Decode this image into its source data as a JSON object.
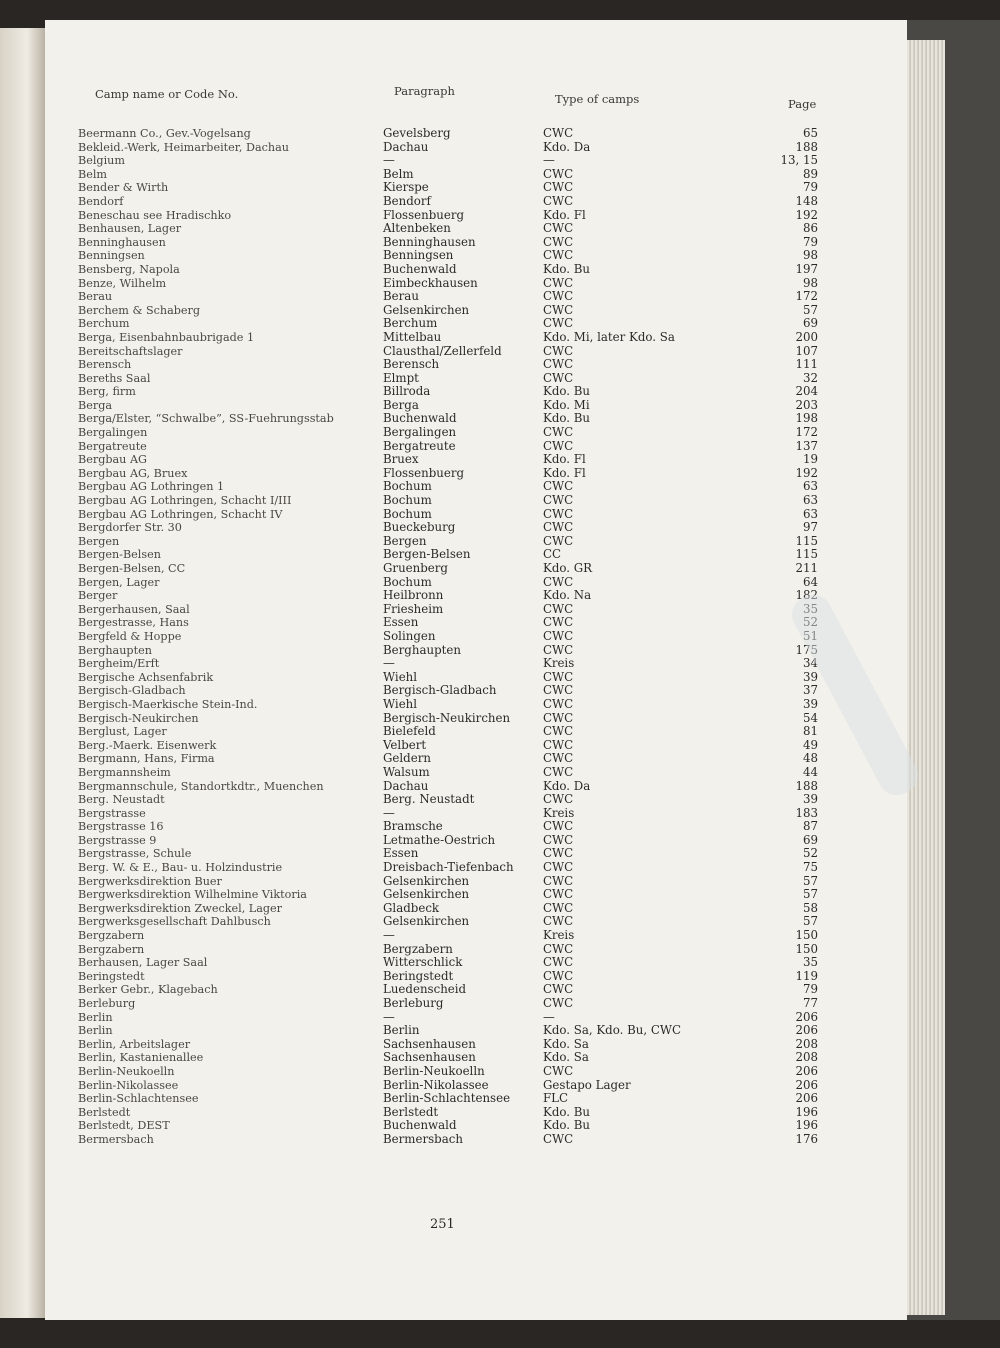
{
  "headers": {
    "name": "Camp name or Code No.",
    "paragraph": "Paragraph",
    "type": "Type of camps",
    "page": "Page"
  },
  "folio": "251",
  "rows": [
    [
      "Beermann Co., Gev.-Vogelsang",
      "Gevelsberg",
      "CWC",
      "65"
    ],
    [
      "Bekleid.-Werk, Heimarbeiter, Dachau",
      "Dachau",
      "Kdo. Da",
      "188"
    ],
    [
      "Belgium",
      "—",
      "—",
      "13, 15"
    ],
    [
      "Belm",
      "Belm",
      "CWC",
      "89"
    ],
    [
      "Bender & Wirth",
      "Kierspe",
      "CWC",
      "79"
    ],
    [
      "Bendorf",
      "Bendorf",
      "CWC",
      "148"
    ],
    [
      "Beneschau see Hradischko",
      "Flossenbuerg",
      "Kdo. Fl",
      "192"
    ],
    [
      "Benhausen, Lager",
      "Altenbeken",
      "CWC",
      "86"
    ],
    [
      "Benninghausen",
      "Benninghausen",
      "CWC",
      "79"
    ],
    [
      "Benningsen",
      "Benningsen",
      "CWC",
      "98"
    ],
    [
      "Bensberg, Napola",
      "Buchenwald",
      "Kdo. Bu",
      "197"
    ],
    [
      "Benze, Wilhelm",
      "Eimbeckhausen",
      "CWC",
      "98"
    ],
    [
      "Berau",
      "Berau",
      "CWC",
      "172"
    ],
    [
      "Berchem & Schaberg",
      "Gelsenkirchen",
      "CWC",
      "57"
    ],
    [
      "Berchum",
      "Berchum",
      "CWC",
      "69"
    ],
    [
      "Berga, Eisenbahnbaubrigade 1",
      "Mittelbau",
      "Kdo. Mi, later Kdo. Sa",
      "200"
    ],
    [
      "Bereitschaftslager",
      "Clausthal/Zellerfeld",
      "CWC",
      "107"
    ],
    [
      "Berensch",
      "Berensch",
      "CWC",
      "111"
    ],
    [
      "Bereths Saal",
      "Elmpt",
      "CWC",
      "32"
    ],
    [
      "Berg, firm",
      "Billroda",
      "Kdo. Bu",
      "204"
    ],
    [
      "Berga",
      "Berga",
      "Kdo. Mi",
      "203"
    ],
    [
      "Berga/Elster, “Schwalbe”, SS-Fuehrungsstab",
      "Buchenwald",
      "Kdo. Bu",
      "198"
    ],
    [
      "Bergalingen",
      "Bergalingen",
      "CWC",
      "172"
    ],
    [
      "Bergatreute",
      "Bergatreute",
      "CWC",
      "137"
    ],
    [
      "Bergbau AG",
      "Bruex",
      "Kdo. Fl",
      "19"
    ],
    [
      "Bergbau AG, Bruex",
      "Flossenbuerg",
      "Kdo. Fl",
      "192"
    ],
    [
      "Bergbau AG Lothringen 1",
      "Bochum",
      "CWC",
      "63"
    ],
    [
      "Bergbau AG Lothringen, Schacht I/III",
      "Bochum",
      "CWC",
      "63"
    ],
    [
      "Bergbau AG Lothringen, Schacht IV",
      "Bochum",
      "CWC",
      "63"
    ],
    [
      "Bergdorfer Str. 30",
      "Bueckeburg",
      "CWC",
      "97"
    ],
    [
      "Bergen",
      "Bergen",
      "CWC",
      "115"
    ],
    [
      "Bergen-Belsen",
      "Bergen-Belsen",
      "CC",
      "115"
    ],
    [
      "Bergen-Belsen, CC",
      "Gruenberg",
      "Kdo. GR",
      "211"
    ],
    [
      "Bergen, Lager",
      "Bochum",
      "CWC",
      "64"
    ],
    [
      "Berger",
      "Heilbronn",
      "Kdo. Na",
      "182"
    ],
    [
      "Bergerhausen, Saal",
      "Friesheim",
      "CWC",
      "35"
    ],
    [
      "Bergestrasse, Hans",
      "Essen",
      "CWC",
      "52"
    ],
    [
      "Bergfeld & Hoppe",
      "Solingen",
      "CWC",
      "51"
    ],
    [
      "Berghaupten",
      "Berghaupten",
      "CWC",
      "175"
    ],
    [
      "Bergheim/Erft",
      "—",
      "Kreis",
      "34"
    ],
    [
      "Bergische Achsenfabrik",
      "Wiehl",
      "CWC",
      "39"
    ],
    [
      "Bergisch-Gladbach",
      "Bergisch-Gladbach",
      "CWC",
      "37"
    ],
    [
      "Bergisch-Maerkische Stein-Ind.",
      "Wiehl",
      "CWC",
      "39"
    ],
    [
      "Bergisch-Neukirchen",
      "Bergisch-Neukirchen",
      "CWC",
      "54"
    ],
    [
      "Berglust, Lager",
      "Bielefeld",
      "CWC",
      "81"
    ],
    [
      "Berg.-Maerk. Eisenwerk",
      "Velbert",
      "CWC",
      "49"
    ],
    [
      "Bergmann, Hans, Firma",
      "Geldern",
      "CWC",
      "48"
    ],
    [
      "Bergmannsheim",
      "Walsum",
      "CWC",
      "44"
    ],
    [
      "Bergmannschule, Standortkdtr., Muenchen",
      "Dachau",
      "Kdo. Da",
      "188"
    ],
    [
      "Berg. Neustadt",
      "Berg. Neustadt",
      "CWC",
      "39"
    ],
    [
      "Bergstrasse",
      "—",
      "Kreis",
      "183"
    ],
    [
      "Bergstrasse 16",
      "Bramsche",
      "CWC",
      "87"
    ],
    [
      "Bergstrasse 9",
      "Letmathe-Oestrich",
      "CWC",
      "69"
    ],
    [
      "Bergstrasse, Schule",
      "Essen",
      "CWC",
      "52"
    ],
    [
      "Berg. W. & E., Bau- u. Holzindustrie",
      "Dreisbach-Tiefenbach",
      "CWC",
      "75"
    ],
    [
      "Bergwerksdirektion Buer",
      "Gelsenkirchen",
      "CWC",
      "57"
    ],
    [
      "Bergwerksdirektion Wilhelmine Viktoria",
      "Gelsenkirchen",
      "CWC",
      "57"
    ],
    [
      "Bergwerksdirektion Zweckel, Lager",
      "Gladbeck",
      "CWC",
      "58"
    ],
    [
      "Bergwerksgesellschaft Dahlbusch",
      "Gelsenkirchen",
      "CWC",
      "57"
    ],
    [
      "Bergzabern",
      "—",
      "Kreis",
      "150"
    ],
    [
      "Bergzabern",
      "Bergzabern",
      "CWC",
      "150"
    ],
    [
      "Berhausen, Lager Saal",
      "Witterschlick",
      "CWC",
      "35"
    ],
    [
      "Beringstedt",
      "Beringstedt",
      "CWC",
      "119"
    ],
    [
      "Berker Gebr., Klagebach",
      "Luedenscheid",
      "CWC",
      "79"
    ],
    [
      "Berleburg",
      "Berleburg",
      "CWC",
      "77"
    ],
    [
      "Berlin",
      "—",
      "—",
      "206"
    ],
    [
      "Berlin",
      "Berlin",
      "Kdo. Sa, Kdo. Bu, CWC",
      "206"
    ],
    [
      "Berlin, Arbeitslager",
      "Sachsenhausen",
      "Kdo. Sa",
      "208"
    ],
    [
      "Berlin, Kastanienallee",
      "Sachsenhausen",
      "Kdo. Sa",
      "208"
    ],
    [
      "Berlin-Neukoelln",
      "Berlin-Neukoelln",
      "CWC",
      "206"
    ],
    [
      "Berlin-Nikolassee",
      "Berlin-Nikolassee",
      "Gestapo Lager",
      "206"
    ],
    [
      "Berlin-Schlachtensee",
      "Berlin-Schlachtensee",
      "FLC",
      "206"
    ],
    [
      "Berlstedt",
      "Berlstedt",
      "Kdo. Bu",
      "196"
    ],
    [
      "Berlstedt, DEST",
      "Buchenwald",
      "Kdo. Bu",
      "196"
    ],
    [
      "Bermersbach",
      "Bermersbach",
      "CWC",
      "176"
    ]
  ]
}
